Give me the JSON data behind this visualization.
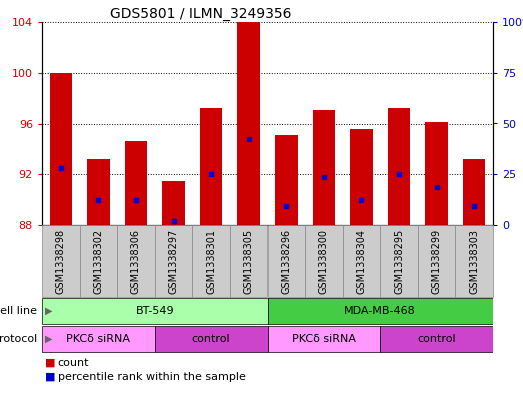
{
  "title": "GDS5801 / ILMN_3249356",
  "samples": [
    "GSM1338298",
    "GSM1338302",
    "GSM1338306",
    "GSM1338297",
    "GSM1338301",
    "GSM1338305",
    "GSM1338296",
    "GSM1338300",
    "GSM1338304",
    "GSM1338295",
    "GSM1338299",
    "GSM1338303"
  ],
  "count_values": [
    100.0,
    93.2,
    94.6,
    91.5,
    97.2,
    104.0,
    95.1,
    97.1,
    95.6,
    97.2,
    96.1,
    93.2
  ],
  "percentile_values": [
    92.5,
    90.0,
    90.0,
    88.3,
    92.0,
    94.8,
    89.5,
    91.8,
    90.0,
    92.0,
    91.0,
    89.5
  ],
  "ylim_left": [
    88,
    104
  ],
  "ylim_right": [
    0,
    100
  ],
  "yticks_left": [
    88,
    92,
    96,
    100,
    104
  ],
  "yticks_right": [
    0,
    25,
    50,
    75,
    100
  ],
  "bar_color": "#cc0000",
  "dot_color": "#0000cc",
  "bar_width": 0.6,
  "cell_line_groups": [
    {
      "label": "BT-549",
      "start": 0,
      "end": 5,
      "color": "#aaffaa"
    },
    {
      "label": "MDA-MB-468",
      "start": 6,
      "end": 11,
      "color": "#44cc44"
    }
  ],
  "protocol_groups": [
    {
      "label": "PKCδ siRNA",
      "start": 0,
      "end": 2,
      "color": "#ff88ff"
    },
    {
      "label": "control",
      "start": 3,
      "end": 5,
      "color": "#cc44cc"
    },
    {
      "label": "PKCδ siRNA",
      "start": 6,
      "end": 8,
      "color": "#ff88ff"
    },
    {
      "label": "control",
      "start": 9,
      "end": 11,
      "color": "#cc44cc"
    }
  ],
  "cell_line_label": "cell line",
  "protocol_label": "protocol",
  "legend_count_label": "count",
  "legend_pct_label": "percentile rank within the sample",
  "tick_label_color_left": "#cc0000",
  "tick_label_color_right": "#0000cc",
  "sample_box_color": "#cccccc",
  "sample_box_edge": "#888888"
}
